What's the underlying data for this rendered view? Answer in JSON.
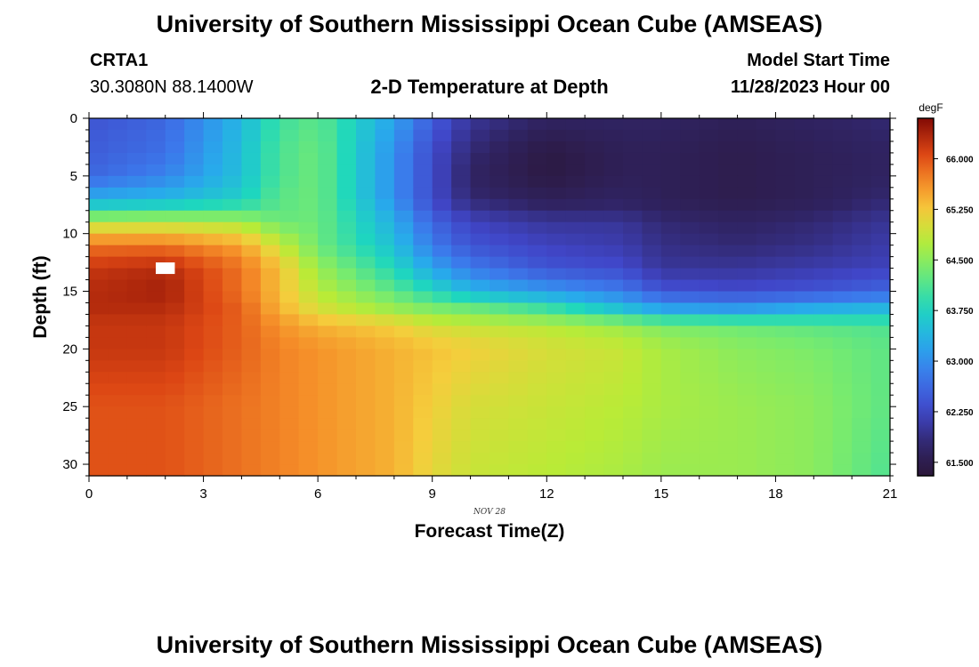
{
  "header": {
    "title": "University of Southern Mississippi Ocean Cube (AMSEAS)",
    "station_id": "CRTA1",
    "coords": "30.3080N  88.1400W",
    "subtitle": "2-D Temperature at Depth",
    "model_start_label": "Model Start Time",
    "model_start_value": "11/28/2023 Hour 00"
  },
  "footer": {
    "title": "University of Southern Mississippi Ocean Cube (AMSEAS)"
  },
  "chart_data": {
    "type": "heatmap",
    "title": "2-D Temperature at Depth",
    "xlabel": "Forecast Time(Z)",
    "ylabel": "Depth (ft)",
    "date_label": "NOV 28",
    "xlim": [
      0,
      21
    ],
    "ylim": [
      0,
      31
    ],
    "x_ticks": [
      "0",
      "3",
      "6",
      "9",
      "12",
      "15",
      "18",
      "21"
    ],
    "y_ticks": [
      "0",
      "5",
      "10",
      "15",
      "20",
      "25",
      "30"
    ],
    "colorbar": {
      "unit": "degF",
      "min": 61.3,
      "max": 66.6,
      "ticks": [
        "61.500",
        "62.250",
        "63.000",
        "63.750",
        "64.500",
        "65.250",
        "66.000"
      ]
    },
    "time_nodes": [
      0,
      2,
      4,
      5,
      6,
      8,
      9,
      10,
      12,
      14,
      15,
      17,
      19,
      21
    ],
    "depth_nodes": [
      0,
      3,
      5,
      7,
      8,
      9,
      11,
      13,
      15,
      16.5,
      18,
      20,
      25,
      31
    ],
    "values": [
      [
        62.4,
        62.6,
        63.4,
        64.0,
        64.2,
        63.2,
        62.5,
        62.0,
        61.7,
        61.7,
        61.7,
        61.6,
        61.7,
        61.8
      ],
      [
        62.5,
        62.7,
        63.5,
        64.1,
        64.3,
        63.0,
        62.3,
        61.8,
        61.4,
        61.6,
        61.6,
        61.5,
        61.6,
        61.7
      ],
      [
        62.6,
        62.9,
        63.5,
        64.1,
        64.3,
        63.0,
        62.3,
        61.7,
        61.4,
        61.6,
        61.6,
        61.5,
        61.6,
        61.7
      ],
      [
        63.3,
        63.4,
        63.7,
        64.2,
        64.3,
        63.0,
        62.3,
        61.8,
        61.6,
        61.7,
        61.6,
        61.5,
        61.6,
        61.8
      ],
      [
        63.9,
        64.0,
        64.1,
        64.2,
        64.3,
        63.2,
        62.4,
        62.0,
        61.8,
        61.8,
        61.7,
        61.6,
        61.7,
        61.9
      ],
      [
        64.8,
        64.8,
        64.7,
        64.3,
        64.3,
        63.3,
        62.6,
        62.2,
        62.0,
        62.0,
        61.8,
        61.7,
        61.8,
        62.0
      ],
      [
        65.8,
        65.8,
        65.5,
        64.9,
        64.3,
        63.5,
        62.8,
        62.4,
        62.2,
        62.1,
        61.9,
        61.8,
        61.9,
        62.1
      ],
      [
        66.2,
        66.3,
        65.8,
        65.3,
        64.6,
        63.8,
        63.2,
        62.8,
        62.4,
        62.3,
        62.0,
        62.0,
        62.1,
        62.2
      ],
      [
        66.3,
        66.4,
        65.8,
        65.3,
        64.8,
        64.2,
        63.8,
        63.4,
        63.1,
        62.8,
        62.4,
        62.3,
        62.4,
        62.6
      ],
      [
        66.3,
        66.3,
        65.9,
        65.4,
        65.0,
        64.6,
        64.4,
        64.3,
        64.0,
        63.5,
        63.2,
        63.1,
        63.3,
        63.4
      ],
      [
        66.2,
        66.2,
        65.9,
        65.6,
        65.4,
        65.2,
        65.0,
        64.9,
        64.8,
        64.6,
        64.4,
        64.3,
        64.2,
        64.1
      ],
      [
        66.2,
        66.2,
        65.9,
        65.7,
        65.6,
        65.4,
        65.3,
        65.2,
        65.0,
        64.9,
        64.7,
        64.5,
        64.4,
        64.2
      ],
      [
        66.0,
        66.0,
        65.8,
        65.7,
        65.6,
        65.4,
        65.2,
        65.0,
        64.9,
        64.8,
        64.7,
        64.6,
        64.5,
        64.2
      ],
      [
        66.0,
        66.0,
        65.8,
        65.7,
        65.6,
        65.4,
        65.1,
        64.9,
        64.8,
        64.7,
        64.6,
        64.6,
        64.5,
        64.1
      ]
    ],
    "missing_cells": [
      {
        "x": 2,
        "depth": 13
      }
    ]
  }
}
